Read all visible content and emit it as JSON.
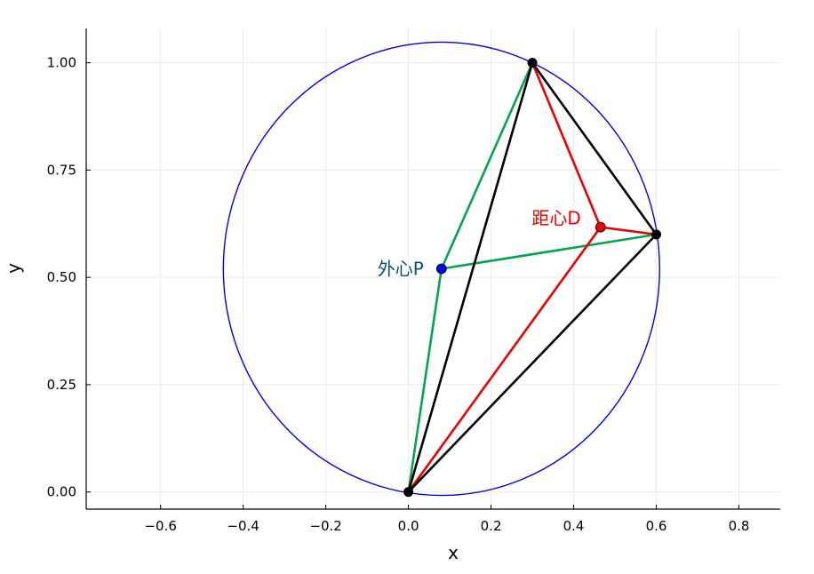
{
  "chart_data": {
    "type": "scatter",
    "xlabel": "x",
    "ylabel": "y",
    "xlim": [
      -0.78,
      0.9
    ],
    "ylim": [
      -0.04,
      1.08
    ],
    "xticks": [
      -0.6,
      -0.4,
      -0.2,
      0.0,
      0.2,
      0.4,
      0.6,
      0.8
    ],
    "xtick_labels": [
      "−0.6",
      "−0.4",
      "−0.2",
      "0.0",
      "0.2",
      "0.4",
      "0.6",
      "0.8"
    ],
    "yticks": [
      0.0,
      0.25,
      0.5,
      0.75,
      1.0
    ],
    "ytick_labels": [
      "0.00",
      "0.25",
      "0.50",
      "0.75",
      "1.00"
    ],
    "grid": true,
    "legend": "none",
    "circle": {
      "center": [
        0.08,
        0.52
      ],
      "radius": 0.528,
      "color": "#0000ee"
    },
    "triangle": {
      "vertices": [
        [
          0.0,
          0.0
        ],
        [
          0.3,
          1.0
        ],
        [
          0.6,
          0.6
        ]
      ],
      "color": "#000000"
    },
    "circumcenter": {
      "label": "外心P",
      "x": 0.08,
      "y": 0.52,
      "color": "#0000ee",
      "label_color": "#0b4f6c",
      "line_color": "#00a651"
    },
    "distance_center": {
      "label": "距心D",
      "x": 0.465,
      "y": 0.617,
      "color": "#ee0000",
      "label_color": "#ee0000",
      "line_color": "#ee0000"
    }
  }
}
